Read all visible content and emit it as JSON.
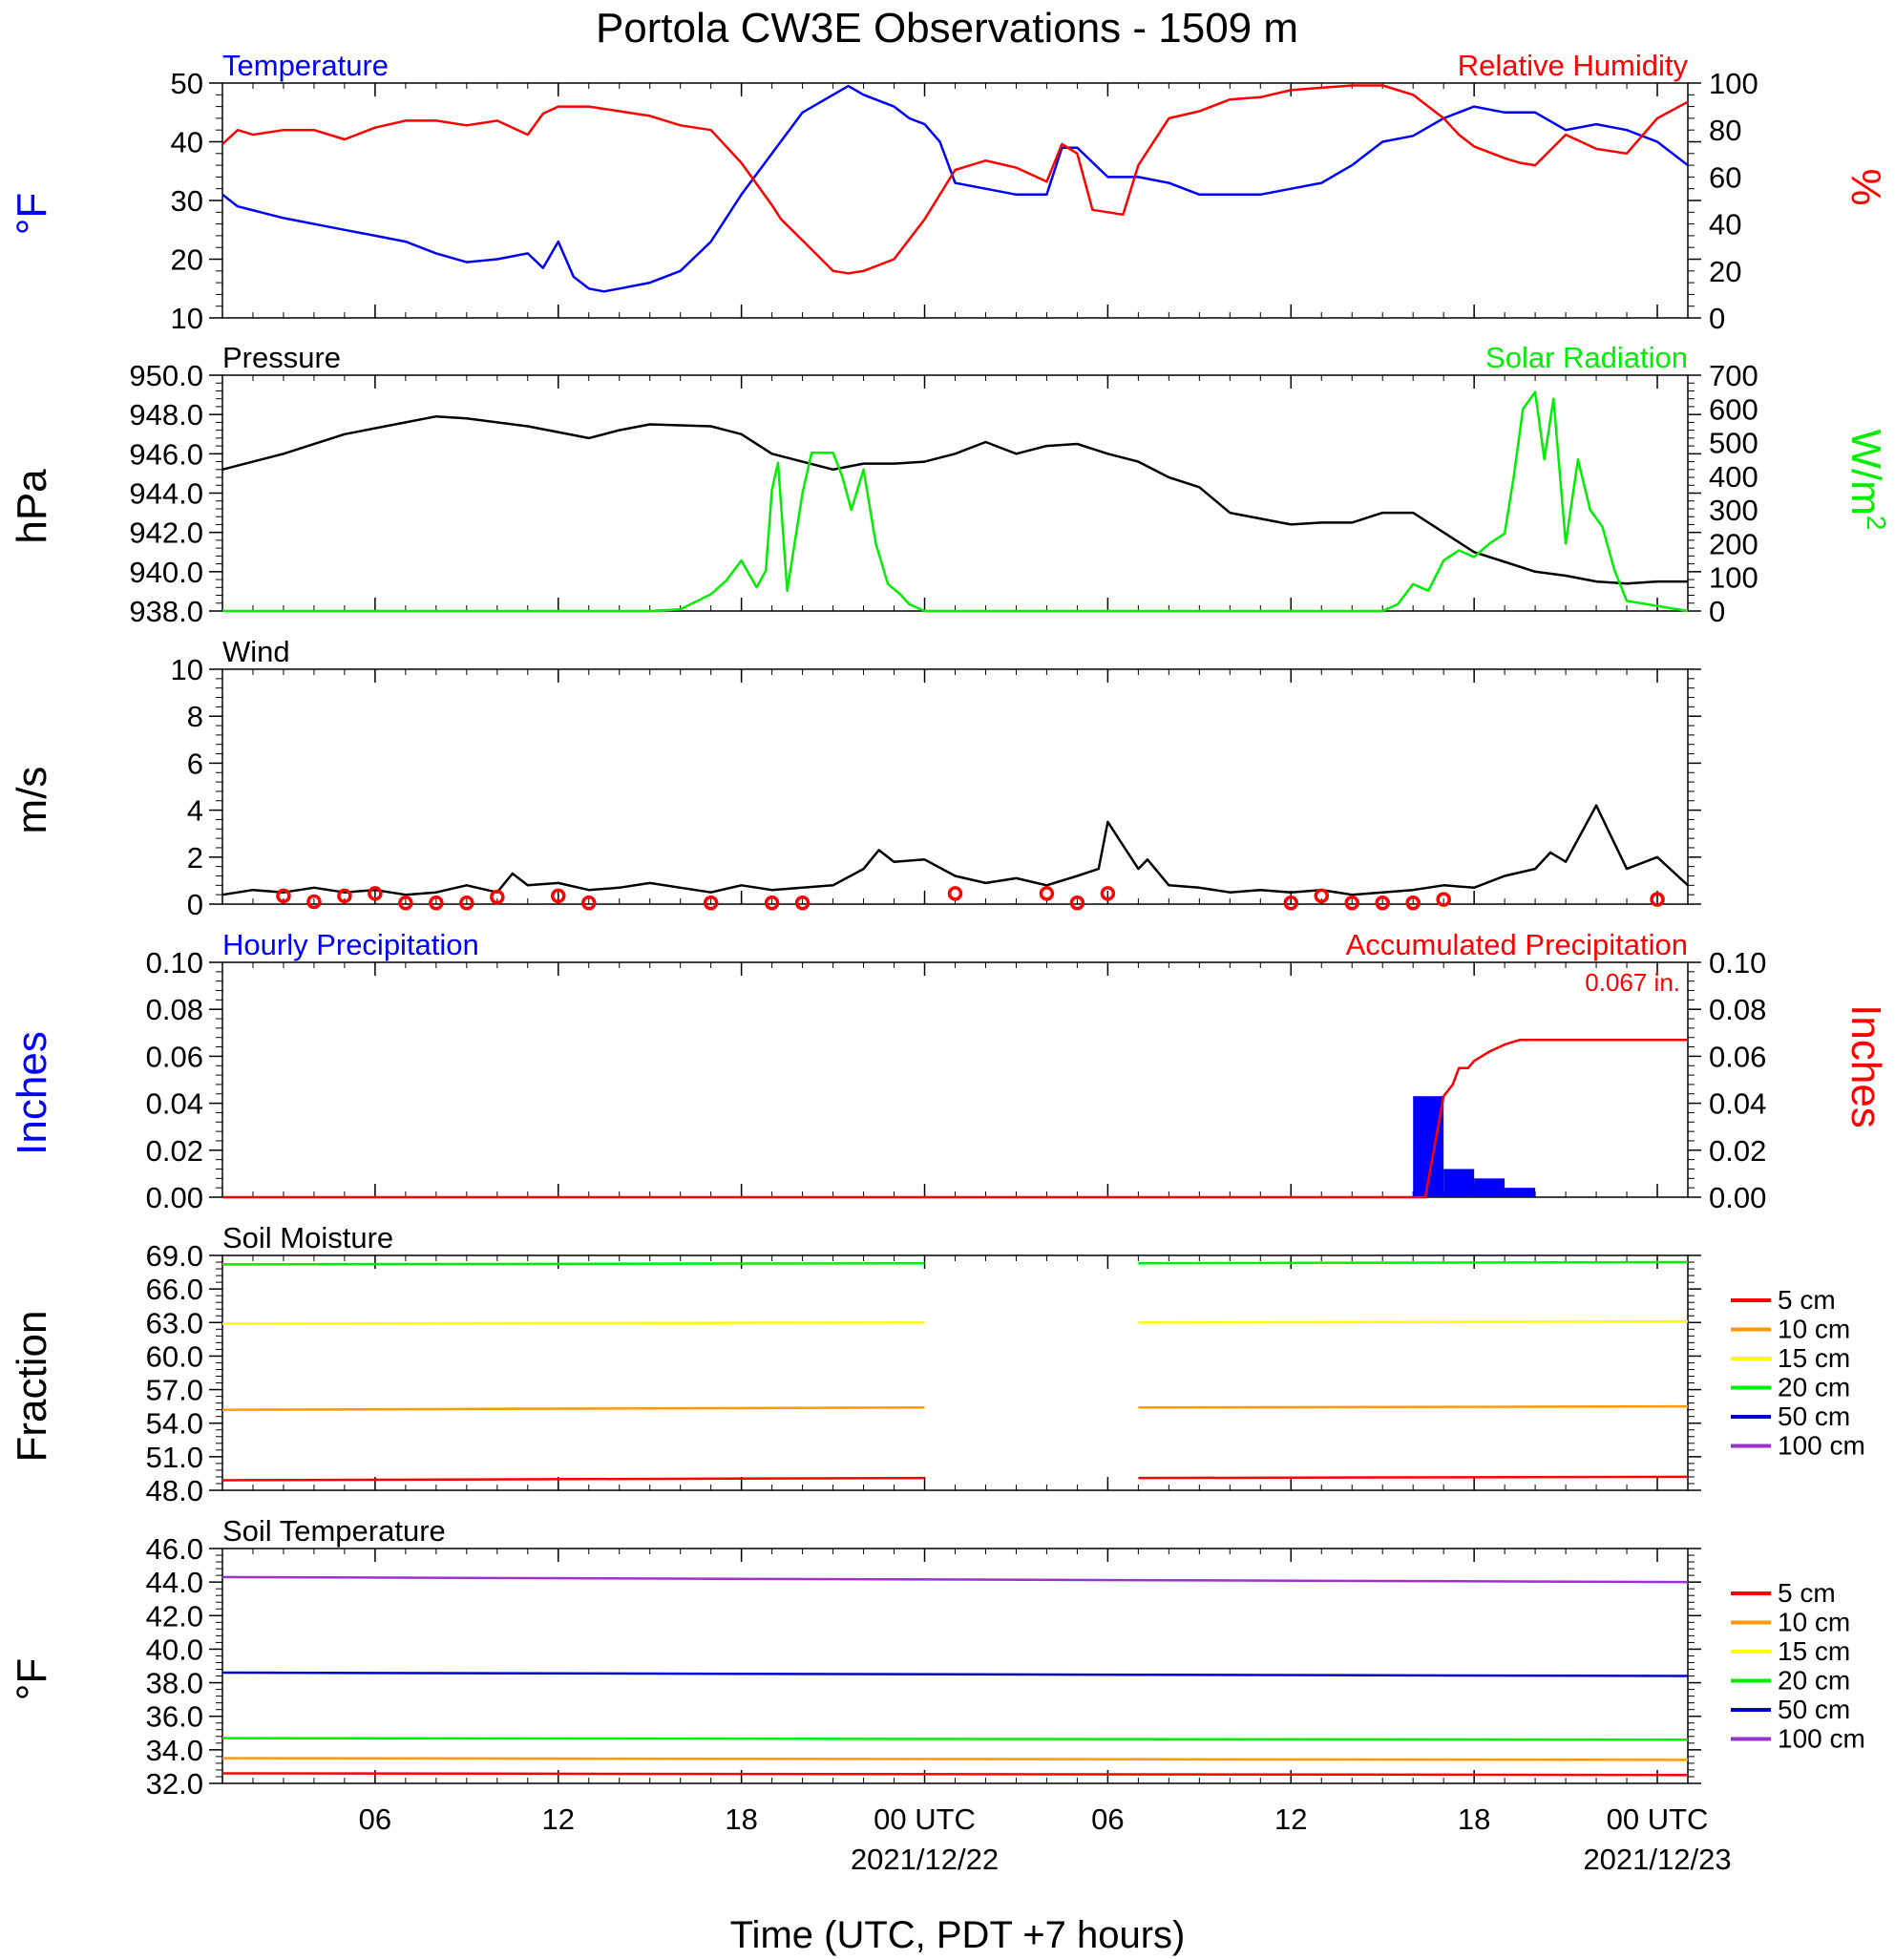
{
  "title": "Portola CW3E Observations - 1509 m",
  "colors": {
    "temperature": "#0000ff",
    "humidity": "#ff0000",
    "pressure": "#000000",
    "solar": "#00ee00",
    "wind": "#000000",
    "wind_marker": "#ff0000",
    "hourly_precip": "#0000ff",
    "accum_precip": "#ff0000",
    "depths": [
      "#ff0000",
      "#ff9900",
      "#ffff00",
      "#00ee00",
      "#0000cc",
      "#9933cc"
    ]
  },
  "x_axis": {
    "label": "Time (UTC, PDT +7 hours)",
    "range_hours": [
      0,
      48
    ],
    "ticks": [
      {
        "hour": 5,
        "label": "06",
        "date": ""
      },
      {
        "hour": 11,
        "label": "12",
        "date": ""
      },
      {
        "hour": 17,
        "label": "18",
        "date": ""
      },
      {
        "hour": 23,
        "label": "00 UTC",
        "date": "2021/12/22"
      },
      {
        "hour": 29,
        "label": "06",
        "date": ""
      },
      {
        "hour": 35,
        "label": "12",
        "date": ""
      },
      {
        "hour": 41,
        "label": "18",
        "date": ""
      },
      {
        "hour": 47,
        "label": "00 UTC",
        "date": "2021/12/23"
      }
    ]
  },
  "chart_data": [
    {
      "type": "line",
      "panel": "temperature_humidity",
      "left_title": "Temperature",
      "right_title": "Relative Humidity",
      "ylabel_left": "°F",
      "ylabel_right": "%",
      "ylim_left": [
        10,
        50
      ],
      "yticks_left": [
        "50",
        "40",
        "30",
        "20",
        "10"
      ],
      "ylim_right": [
        0,
        100
      ],
      "yticks_right": [
        "100",
        "80",
        "60",
        "40",
        "20",
        "0"
      ],
      "series": [
        {
          "name": "Temperature",
          "axis": "left",
          "x": [
            0,
            0.5,
            2,
            4,
            5,
            6,
            7,
            8,
            9,
            10,
            10.5,
            11,
            11.5,
            12,
            12.5,
            13,
            14,
            15,
            16,
            17,
            18,
            19,
            20,
            20.5,
            21,
            22,
            22.5,
            23,
            23.5,
            24,
            25,
            26,
            27,
            27.5,
            28,
            29,
            30,
            31,
            32,
            33,
            34,
            35,
            36,
            37,
            38,
            39,
            40,
            41,
            42,
            43,
            44,
            45,
            46,
            47,
            48
          ],
          "y": [
            31,
            29,
            27,
            25,
            24,
            23,
            21,
            19.5,
            20,
            21,
            18.5,
            23,
            17,
            15,
            14.5,
            15,
            16,
            18,
            23,
            31,
            38,
            45,
            48,
            49.5,
            48,
            46,
            44,
            43,
            40,
            33,
            32,
            31,
            31,
            39,
            39,
            34,
            34,
            33,
            31,
            31,
            31,
            32,
            33,
            36,
            40,
            41,
            44,
            46,
            45,
            45,
            42,
            43,
            42,
            40,
            36
          ]
        },
        {
          "name": "Relative Humidity",
          "axis": "right",
          "x": [
            0,
            0.5,
            1,
            2,
            3,
            4,
            5,
            6,
            7,
            8,
            9,
            10,
            10.5,
            11,
            12,
            13,
            14,
            15,
            16,
            17,
            18,
            18.3,
            19,
            20,
            20.5,
            21,
            22,
            23,
            24,
            25,
            26,
            27,
            27.5,
            28,
            28.5,
            29,
            29.5,
            30,
            31,
            32,
            33,
            34,
            35,
            36,
            37,
            38,
            39,
            39.5,
            40,
            40.5,
            41,
            42,
            42.5,
            43,
            44,
            45,
            46,
            47,
            48
          ],
          "y": [
            74,
            80,
            78,
            80,
            80,
            76,
            81,
            84,
            84,
            82,
            84,
            78,
            87,
            90,
            90,
            88,
            86,
            82,
            80,
            66,
            48,
            42,
            33,
            20,
            19,
            20,
            25,
            42,
            63,
            67,
            64,
            58,
            74,
            70,
            46,
            45,
            44,
            65,
            85,
            88,
            93,
            94,
            97,
            98,
            99,
            99,
            95,
            90,
            85,
            78,
            73,
            68,
            66,
            65,
            78,
            72,
            70,
            85,
            92
          ]
        }
      ]
    },
    {
      "type": "line",
      "panel": "pressure_solar",
      "left_title": "Pressure",
      "right_title": "Solar Radiation",
      "ylabel_left": "hPa",
      "ylabel_right": "W/m",
      "ylabel_right_sup": "2",
      "ylim_left": [
        938,
        950
      ],
      "yticks_left": [
        "950.0",
        "948.0",
        "946.0",
        "944.0",
        "942.0",
        "940.0",
        "938.0"
      ],
      "ylim_right": [
        0,
        700
      ],
      "yticks_right": [
        "700",
        "600",
        "500",
        "400",
        "300",
        "200",
        "100",
        "0"
      ],
      "series": [
        {
          "name": "Pressure",
          "axis": "left",
          "x": [
            0,
            2,
            4,
            6,
            7,
            8,
            10,
            12,
            13,
            14,
            16,
            17,
            18,
            20,
            21,
            22,
            23,
            24,
            25,
            26,
            27,
            28,
            29,
            30,
            31,
            32,
            33,
            35,
            36,
            37,
            38,
            39,
            40,
            41,
            42,
            43,
            44,
            45,
            46,
            47,
            48
          ],
          "y": [
            945.2,
            946,
            947,
            947.6,
            947.9,
            947.8,
            947.4,
            946.8,
            947.2,
            947.5,
            947.4,
            947,
            946,
            945.2,
            945.5,
            945.5,
            945.6,
            946,
            946.6,
            946,
            946.4,
            946.5,
            946,
            945.6,
            944.8,
            944.3,
            943,
            942.4,
            942.5,
            942.5,
            943,
            943,
            942,
            941,
            940.5,
            940,
            939.8,
            939.5,
            939.4,
            939.5,
            939.5
          ]
        },
        {
          "name": "Solar Radiation",
          "axis": "right",
          "x": [
            0,
            14,
            15,
            16,
            16.5,
            17,
            17.5,
            17.8,
            18,
            18.2,
            18.5,
            19,
            19.3,
            19.6,
            20,
            20.3,
            20.6,
            21,
            21.4,
            21.8,
            22.2,
            22.5,
            23,
            38,
            38.5,
            39,
            39.5,
            40,
            40.5,
            41,
            41.5,
            42,
            42.3,
            42.6,
            43,
            43.3,
            43.6,
            44,
            44.4,
            44.8,
            45.2,
            45.6,
            46,
            48
          ],
          "y": [
            0,
            0,
            5,
            50,
            90,
            150,
            70,
            120,
            360,
            440,
            60,
            350,
            470,
            470,
            470,
            400,
            300,
            420,
            200,
            80,
            50,
            20,
            0,
            0,
            20,
            80,
            60,
            150,
            180,
            160,
            200,
            230,
            400,
            600,
            650,
            450,
            630,
            200,
            450,
            300,
            250,
            120,
            30,
            0
          ]
        }
      ]
    },
    {
      "type": "line",
      "panel": "wind",
      "left_title": "Wind",
      "ylabel_left": "m/s",
      "ylim_left": [
        0,
        10
      ],
      "yticks_left": [
        "10",
        "8",
        "6",
        "4",
        "2",
        "0"
      ],
      "series": [
        {
          "name": "Wind",
          "axis": "left",
          "x": [
            0,
            1,
            2,
            3,
            4,
            5,
            6,
            7,
            8,
            9,
            9.5,
            10,
            11,
            12,
            13,
            14,
            15,
            16,
            17,
            18,
            19,
            20,
            21,
            21.5,
            22,
            23,
            24,
            25,
            26,
            27,
            28,
            28.7,
            29,
            30,
            30.3,
            31,
            32,
            33,
            34,
            35,
            36,
            37,
            38,
            39,
            40,
            41,
            42,
            43,
            43.5,
            44,
            45,
            46,
            47,
            48
          ],
          "y": [
            0.4,
            0.6,
            0.5,
            0.7,
            0.5,
            0.6,
            0.4,
            0.5,
            0.8,
            0.5,
            1.3,
            0.8,
            0.9,
            0.6,
            0.7,
            0.9,
            0.7,
            0.5,
            0.8,
            0.6,
            0.7,
            0.8,
            1.5,
            2.3,
            1.8,
            1.9,
            1.2,
            0.9,
            1.1,
            0.8,
            1.2,
            1.5,
            3.5,
            1.5,
            1.9,
            0.8,
            0.7,
            0.5,
            0.6,
            0.5,
            0.6,
            0.4,
            0.5,
            0.6,
            0.8,
            0.7,
            1.2,
            1.5,
            2.2,
            1.8,
            4.2,
            1.5,
            2.0,
            0.8
          ]
        },
        {
          "name": "Wind markers",
          "axis": "left",
          "x": [
            2,
            3,
            4,
            5,
            6,
            7,
            8,
            9,
            11,
            12,
            16,
            18,
            19,
            24,
            27,
            28,
            29,
            35,
            36,
            37,
            38,
            39,
            40,
            47
          ],
          "y": [
            0.35,
            0.1,
            0.35,
            0.45,
            0.05,
            0.05,
            0.05,
            0.3,
            0.35,
            0.05,
            0.05,
            0.05,
            0.05,
            0.45,
            0.45,
            0.05,
            0.45,
            0.05,
            0.35,
            0.05,
            0.05,
            0.05,
            0.2,
            0.2
          ]
        }
      ]
    },
    {
      "type": "bar",
      "panel": "precipitation",
      "left_title": "Hourly Precipitation",
      "right_title": "Accumulated Precipitation",
      "annotation": "0.067 in.",
      "ylabel_left": "Inches",
      "ylabel_right": "Inches",
      "ylim_left": [
        0,
        0.1
      ],
      "yticks_left": [
        "0.10",
        "0.08",
        "0.06",
        "0.04",
        "0.02",
        "0.00"
      ],
      "ylim_right": [
        0,
        0.1
      ],
      "yticks_right": [
        "0.10",
        "0.08",
        "0.06",
        "0.04",
        "0.02",
        "0.00"
      ],
      "series": [
        {
          "name": "Hourly Precipitation",
          "axis": "left",
          "x": [
            39,
            40,
            41,
            42
          ],
          "y": [
            0.043,
            0.012,
            0.008,
            0.004
          ]
        },
        {
          "name": "Accumulated Precipitation",
          "axis": "right",
          "x": [
            0,
            39.4,
            40,
            40.3,
            40.5,
            40.8,
            41,
            41.5,
            42,
            42.5,
            48
          ],
          "y": [
            0,
            0,
            0.043,
            0.048,
            0.055,
            0.055,
            0.058,
            0.062,
            0.065,
            0.067,
            0.067
          ]
        }
      ]
    },
    {
      "type": "line",
      "panel": "soil_moisture",
      "left_title": "Soil Moisture",
      "ylabel_left": "Fraction",
      "ylim_left": [
        48,
        69
      ],
      "yticks_left": [
        "69.0",
        "66.0",
        "63.0",
        "60.0",
        "57.0",
        "54.0",
        "51.0",
        "48.0"
      ],
      "legend": [
        "5 cm",
        "10 cm",
        "15 cm",
        "20 cm",
        "50 cm",
        "100 cm"
      ],
      "series": [
        {
          "name": "5 cm",
          "axis": "left",
          "x": [
            0,
            23,
            null,
            30,
            48
          ],
          "y": [
            48.9,
            49.1,
            null,
            49.1,
            49.2
          ]
        },
        {
          "name": "10 cm",
          "axis": "left",
          "x": [
            0,
            23,
            null,
            30,
            48
          ],
          "y": [
            55.2,
            55.4,
            null,
            55.4,
            55.5
          ]
        },
        {
          "name": "15 cm",
          "axis": "left",
          "x": [
            0,
            23,
            null,
            30,
            48
          ],
          "y": [
            62.9,
            63.0,
            null,
            63.0,
            63.1
          ]
        },
        {
          "name": "20 cm",
          "axis": "left",
          "x": [
            0,
            23,
            null,
            30,
            48
          ],
          "y": [
            68.2,
            68.3,
            null,
            68.3,
            68.4
          ]
        }
      ]
    },
    {
      "type": "line",
      "panel": "soil_temperature",
      "left_title": "Soil Temperature",
      "ylabel_left": "°F",
      "ylim_left": [
        32,
        46
      ],
      "yticks_left": [
        "46.0",
        "44.0",
        "42.0",
        "40.0",
        "38.0",
        "36.0",
        "34.0",
        "32.0"
      ],
      "legend": [
        "5 cm",
        "10 cm",
        "15 cm",
        "20 cm",
        "50 cm",
        "100 cm"
      ],
      "series": [
        {
          "name": "5 cm",
          "axis": "left",
          "x": [
            0,
            48
          ],
          "y": [
            32.6,
            32.5
          ]
        },
        {
          "name": "10 cm",
          "axis": "left",
          "x": [
            0,
            48
          ],
          "y": [
            33.5,
            33.4
          ]
        },
        {
          "name": "20 cm",
          "axis": "left",
          "x": [
            0,
            48
          ],
          "y": [
            34.7,
            34.6
          ]
        },
        {
          "name": "50 cm",
          "axis": "left",
          "x": [
            0,
            48
          ],
          "y": [
            38.6,
            38.4
          ]
        },
        {
          "name": "100 cm",
          "axis": "left",
          "x": [
            0,
            48
          ],
          "y": [
            44.3,
            44.0
          ]
        }
      ]
    }
  ]
}
